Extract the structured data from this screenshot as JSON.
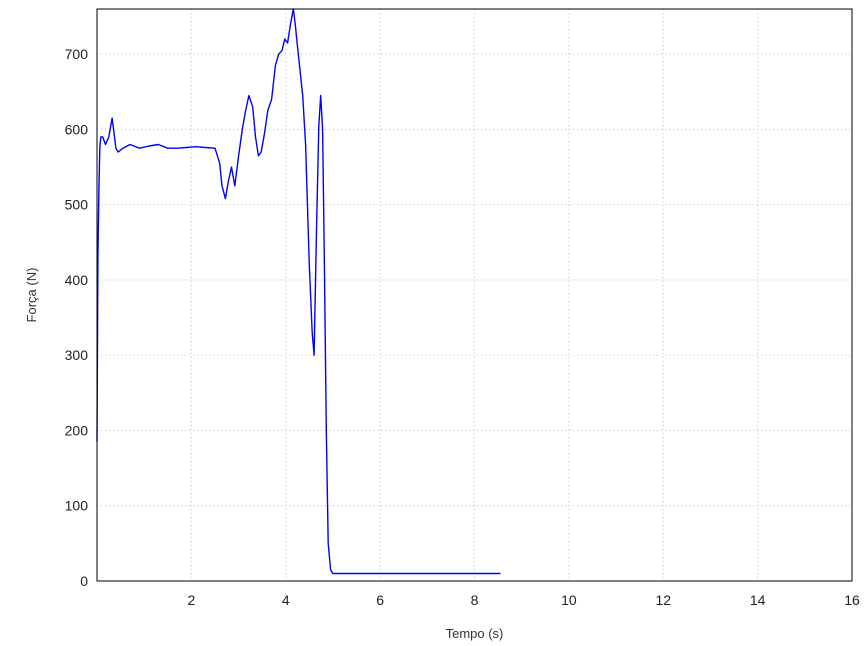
{
  "chart_data": {
    "type": "line",
    "title": "",
    "xlabel": "Tempo (s)",
    "ylabel": "Força (N)",
    "xlim": [
      0,
      16
    ],
    "ylim": [
      0,
      760
    ],
    "xticks": [
      2,
      4,
      6,
      8,
      10,
      12,
      14,
      16
    ],
    "yticks": [
      0,
      100,
      200,
      300,
      400,
      500,
      600,
      700
    ],
    "grid": true,
    "legend": "none",
    "series": [
      {
        "color": "#0000ff",
        "x": [
          0,
          0.02,
          0.04,
          0.06,
          0.08,
          0.12,
          0.18,
          0.25,
          0.32,
          0.37,
          0.4,
          0.45,
          0.55,
          0.7,
          0.9,
          1.1,
          1.3,
          1.5,
          1.7,
          1.9,
          2.1,
          2.3,
          2.5,
          2.6,
          2.65,
          2.72,
          2.78,
          2.85,
          2.92,
          3.0,
          3.08,
          3.15,
          3.22,
          3.3,
          3.36,
          3.42,
          3.48,
          3.55,
          3.62,
          3.7,
          3.78,
          3.85,
          3.92,
          3.98,
          4.04,
          4.1,
          4.16,
          4.2,
          4.25,
          4.3,
          4.36,
          4.42,
          4.5,
          4.56,
          4.6,
          4.65,
          4.7,
          4.74,
          4.78,
          4.82,
          4.86,
          4.9,
          4.95,
          5.0,
          5.05,
          5.1,
          5.15,
          5.2,
          6,
          7,
          8,
          8.55
        ],
        "y": [
          185,
          430,
          520,
          575,
          590,
          590,
          580,
          590,
          615,
          590,
          575,
          570,
          575,
          580,
          575,
          578,
          580,
          575,
          575,
          576,
          577,
          576,
          575,
          555,
          525,
          508,
          530,
          550,
          525,
          565,
          600,
          625,
          645,
          630,
          590,
          565,
          570,
          595,
          625,
          640,
          685,
          700,
          705,
          720,
          715,
          740,
          760,
          740,
          710,
          680,
          645,
          580,
          420,
          330,
          300,
          460,
          605,
          645,
          600,
          420,
          200,
          50,
          15,
          10,
          10,
          10,
          10,
          10,
          10,
          10,
          10,
          10
        ]
      }
    ]
  }
}
